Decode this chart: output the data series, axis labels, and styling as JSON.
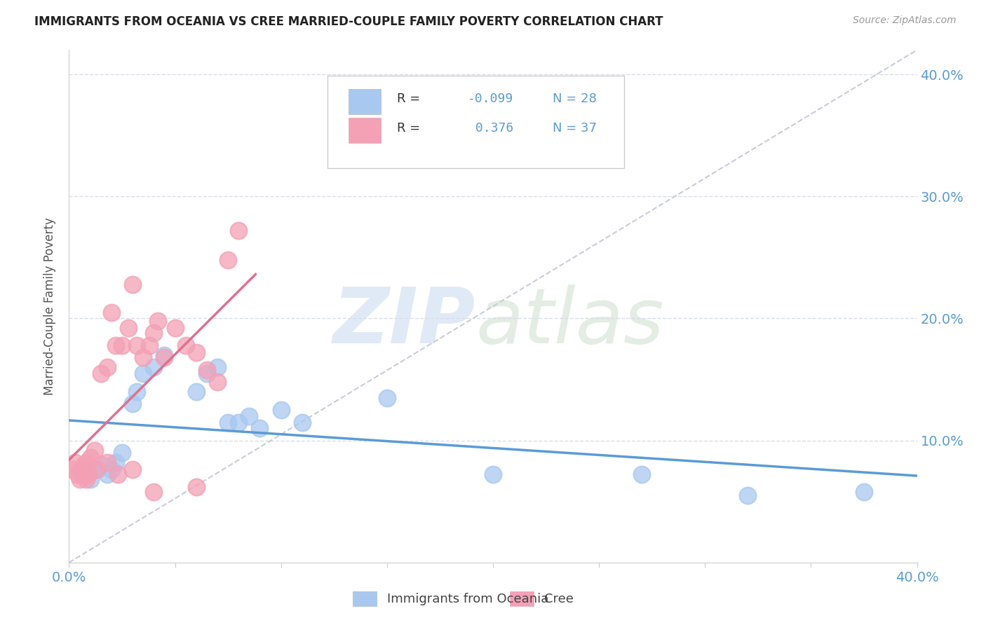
{
  "title": "IMMIGRANTS FROM OCEANIA VS CREE MARRIED-COUPLE FAMILY POVERTY CORRELATION CHART",
  "source": "Source: ZipAtlas.com",
  "ylabel": "Married-Couple Family Poverty",
  "xmin": 0.0,
  "xmax": 0.4,
  "ymin": 0.0,
  "ymax": 0.42,
  "xticks": [
    0.0,
    0.05,
    0.1,
    0.15,
    0.2,
    0.25,
    0.3,
    0.35,
    0.4
  ],
  "yticks": [
    0.0,
    0.1,
    0.2,
    0.3,
    0.4
  ],
  "color_blue": "#a8c8f0",
  "color_pink": "#f4a0b5",
  "color_blue_line": "#5b9bd5",
  "color_pink_line": "#e07090",
  "color_diagonal": "#c8cdd8",
  "color_tick_label": "#5b9bd5",
  "color_grid": "#d8dde8",
  "blue_scatter": [
    [
      0.005,
      0.075
    ],
    [
      0.008,
      0.072
    ],
    [
      0.01,
      0.068
    ],
    [
      0.012,
      0.076
    ],
    [
      0.015,
      0.08
    ],
    [
      0.018,
      0.072
    ],
    [
      0.02,
      0.076
    ],
    [
      0.022,
      0.082
    ],
    [
      0.025,
      0.09
    ],
    [
      0.03,
      0.13
    ],
    [
      0.032,
      0.14
    ],
    [
      0.035,
      0.155
    ],
    [
      0.04,
      0.16
    ],
    [
      0.045,
      0.17
    ],
    [
      0.06,
      0.14
    ],
    [
      0.065,
      0.155
    ],
    [
      0.07,
      0.16
    ],
    [
      0.075,
      0.115
    ],
    [
      0.08,
      0.115
    ],
    [
      0.085,
      0.12
    ],
    [
      0.09,
      0.11
    ],
    [
      0.1,
      0.125
    ],
    [
      0.11,
      0.115
    ],
    [
      0.15,
      0.135
    ],
    [
      0.2,
      0.072
    ],
    [
      0.27,
      0.072
    ],
    [
      0.32,
      0.055
    ],
    [
      0.375,
      0.058
    ]
  ],
  "pink_scatter": [
    [
      0.002,
      0.076
    ],
    [
      0.004,
      0.072
    ],
    [
      0.005,
      0.068
    ],
    [
      0.007,
      0.08
    ],
    [
      0.008,
      0.082
    ],
    [
      0.009,
      0.072
    ],
    [
      0.01,
      0.086
    ],
    [
      0.012,
      0.092
    ],
    [
      0.015,
      0.155
    ],
    [
      0.018,
      0.16
    ],
    [
      0.02,
      0.205
    ],
    [
      0.022,
      0.178
    ],
    [
      0.025,
      0.178
    ],
    [
      0.028,
      0.192
    ],
    [
      0.03,
      0.228
    ],
    [
      0.032,
      0.178
    ],
    [
      0.035,
      0.168
    ],
    [
      0.038,
      0.178
    ],
    [
      0.04,
      0.188
    ],
    [
      0.042,
      0.198
    ],
    [
      0.045,
      0.168
    ],
    [
      0.05,
      0.192
    ],
    [
      0.055,
      0.178
    ],
    [
      0.06,
      0.172
    ],
    [
      0.065,
      0.158
    ],
    [
      0.07,
      0.148
    ],
    [
      0.075,
      0.248
    ],
    [
      0.08,
      0.272
    ],
    [
      0.003,
      0.082
    ],
    [
      0.006,
      0.072
    ],
    [
      0.008,
      0.068
    ],
    [
      0.013,
      0.076
    ],
    [
      0.018,
      0.082
    ],
    [
      0.023,
      0.072
    ],
    [
      0.03,
      0.076
    ],
    [
      0.04,
      0.058
    ],
    [
      0.06,
      0.062
    ]
  ],
  "legend_r1_label": "R = ",
  "legend_r1_val": "-0.099",
  "legend_n1": "N = 28",
  "legend_r2_label": "R = ",
  "legend_r2_val": "  0.376",
  "legend_n2": "N = 37",
  "bottom_legend1": "Immigrants from Oceania",
  "bottom_legend2": "Cree"
}
